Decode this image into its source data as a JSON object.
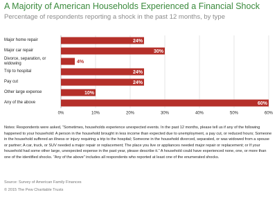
{
  "chart_data": {
    "type": "hbar",
    "title": "A Majority of American Households Experienced a Financial Shock",
    "subtitle": "Percentage of respondents reporting a shock in the past 12 months, by type",
    "categories": [
      "Major home repair",
      "Major car repair",
      "Divorce, separation, or widowing",
      "Trip to hospital",
      "Pay cut",
      "Other large expense",
      "Any of the above"
    ],
    "values": [
      24,
      30,
      4,
      24,
      24,
      10,
      60
    ],
    "value_labels": [
      "24%",
      "30%",
      "4%",
      "24%",
      "24%",
      "10%",
      "60%"
    ],
    "color": "#b5302a",
    "xlim": [
      0,
      60
    ],
    "xticks": [
      {
        "value": 0,
        "label": "0%"
      },
      {
        "value": 10,
        "label": "10%"
      },
      {
        "value": 20,
        "label": "20%"
      },
      {
        "value": 30,
        "label": "30%"
      },
      {
        "value": 40,
        "label": "40%"
      },
      {
        "value": 50,
        "label": "50%"
      },
      {
        "value": 60,
        "label": "60%"
      }
    ],
    "grid": true,
    "notes": "Notes: Respondents were asked, “Sometimes, households experience unexpected events. In the past 12 months, please tell us if any of the following happened to your household: A person in the household brought in less income than expected due to unemployment, a pay cut, or reduced hours; Someone in the household suffered an illness or injury requiring a trip to the hospital; Someone in the household divorced, separated, or was widowed from a spouse or partner; A car, truck, or SUV needed a major repair or replacement; The place you live or appliances needed major repair or replacement; or If your household had some other large, unexpected expense in the past year, please describe it.” A household could have experienced none, one, or more than one of the identified shocks. “Any of the above” includes all respondents who reported at least one of the enumerated shocks.",
    "source": "Source: Survey of American Family Finances",
    "copyright": "© 2015 The Pew Charitable Trusts"
  }
}
